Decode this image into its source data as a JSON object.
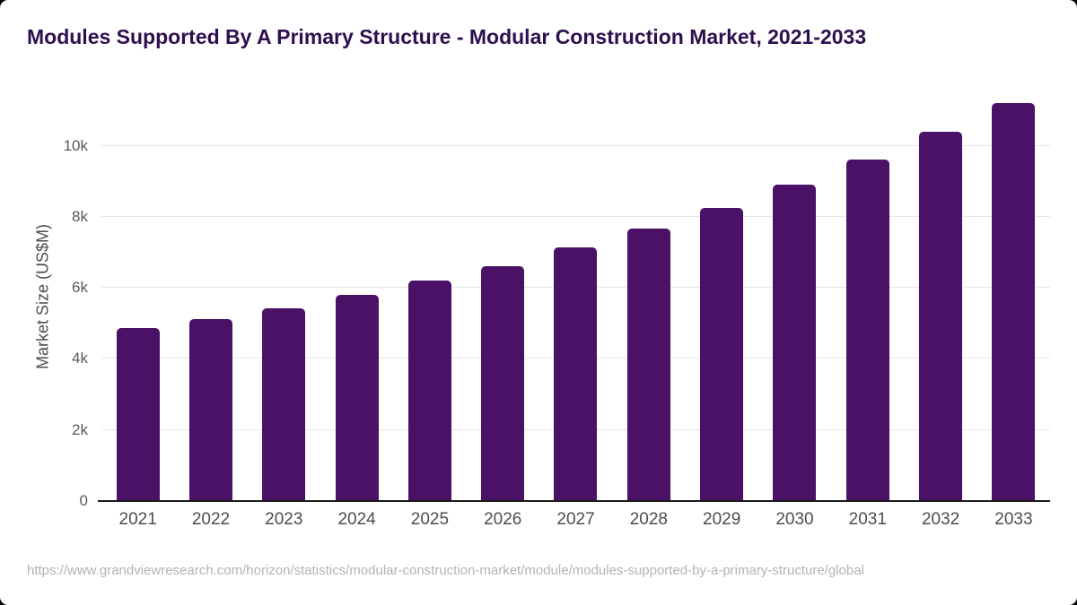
{
  "header": {
    "title": "Modules Supported By A Primary Structure - Modular Construction Market, 2021-2033"
  },
  "chart_data": {
    "type": "bar",
    "title": "Modules Supported By A Primary Structure - Modular Construction Market, 2021-2033",
    "categories": [
      "2021",
      "2022",
      "2023",
      "2024",
      "2025",
      "2026",
      "2027",
      "2028",
      "2029",
      "2030",
      "2031",
      "2032",
      "2033"
    ],
    "values": [
      4860,
      5110,
      5420,
      5800,
      6200,
      6620,
      7150,
      7670,
      8250,
      8900,
      9610,
      10400,
      11200
    ],
    "xlabel": "",
    "ylabel": "Market Size (US$M)",
    "unit": "US$M",
    "ylim": [
      0,
      11500
    ],
    "yticks": [
      {
        "value": 0,
        "label": "0"
      },
      {
        "value": 2000,
        "label": "2k"
      },
      {
        "value": 4000,
        "label": "4k"
      },
      {
        "value": 6000,
        "label": "6k"
      },
      {
        "value": 8000,
        "label": "8k"
      },
      {
        "value": 10000,
        "label": "10k"
      }
    ],
    "grid": true,
    "legend": false,
    "bar_color": "#4a1166"
  },
  "footer": {
    "source_url": "https://www.grandviewresearch.com/horizon/statistics/modular-construction-market/module/modules-supported-by-a-primary-structure/global"
  },
  "colors": {
    "background": "#000000",
    "card": "#ffffff",
    "title_text": "#2e0f4f",
    "bar": "#4a1166",
    "axis_line": "#1a1a1a",
    "gridline": "#e7e7e7",
    "y_tick_label": "#595959",
    "x_tick_label": "#4d4d4d",
    "source_text": "#b3b3b3"
  }
}
